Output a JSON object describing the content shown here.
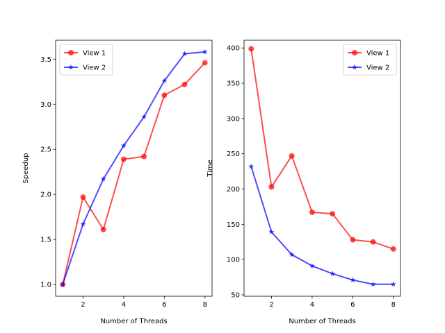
{
  "chart_data": [
    {
      "type": "line",
      "title": "",
      "xlabel": "Number of Threads",
      "ylabel": "Speedup",
      "x": [
        1,
        2,
        3,
        4,
        5,
        6,
        7,
        8
      ],
      "xlim": [
        0.65,
        8.35
      ],
      "ylim": [
        0.87,
        3.71
      ],
      "xticks": [
        2,
        4,
        6,
        8
      ],
      "yticks": [
        1.0,
        1.5,
        2.0,
        2.5,
        3.0,
        3.5
      ],
      "ytick_format": 1,
      "legend": "top-left",
      "grid": false,
      "series": [
        {
          "name": "View 1",
          "color": "#ff0000",
          "marker": "circle",
          "values": [
            1.0,
            1.97,
            1.61,
            2.39,
            2.42,
            3.1,
            3.22,
            3.46
          ]
        },
        {
          "name": "View 2",
          "color": "#0000ff",
          "marker": "star",
          "values": [
            1.0,
            1.67,
            2.17,
            2.54,
            2.86,
            3.26,
            3.56,
            3.58
          ]
        }
      ]
    },
    {
      "type": "line",
      "title": "",
      "xlabel": "Number of Threads",
      "ylabel": "Time",
      "x": [
        1,
        2,
        3,
        4,
        5,
        6,
        7,
        8
      ],
      "xlim": [
        0.65,
        8.35
      ],
      "ylim": [
        48,
        411
      ],
      "xticks": [
        2,
        4,
        6,
        8
      ],
      "yticks": [
        50,
        100,
        150,
        200,
        250,
        300,
        350,
        400
      ],
      "ytick_format": 0,
      "legend": "top-right",
      "grid": false,
      "series": [
        {
          "name": "View 1",
          "color": "#ff0000",
          "marker": "circle",
          "values": [
            399,
            203,
            247,
            167,
            165,
            128,
            125,
            115
          ]
        },
        {
          "name": "View 2",
          "color": "#0000ff",
          "marker": "star",
          "values": [
            232,
            139,
            107,
            91,
            80,
            71,
            65,
            65
          ]
        }
      ]
    }
  ]
}
